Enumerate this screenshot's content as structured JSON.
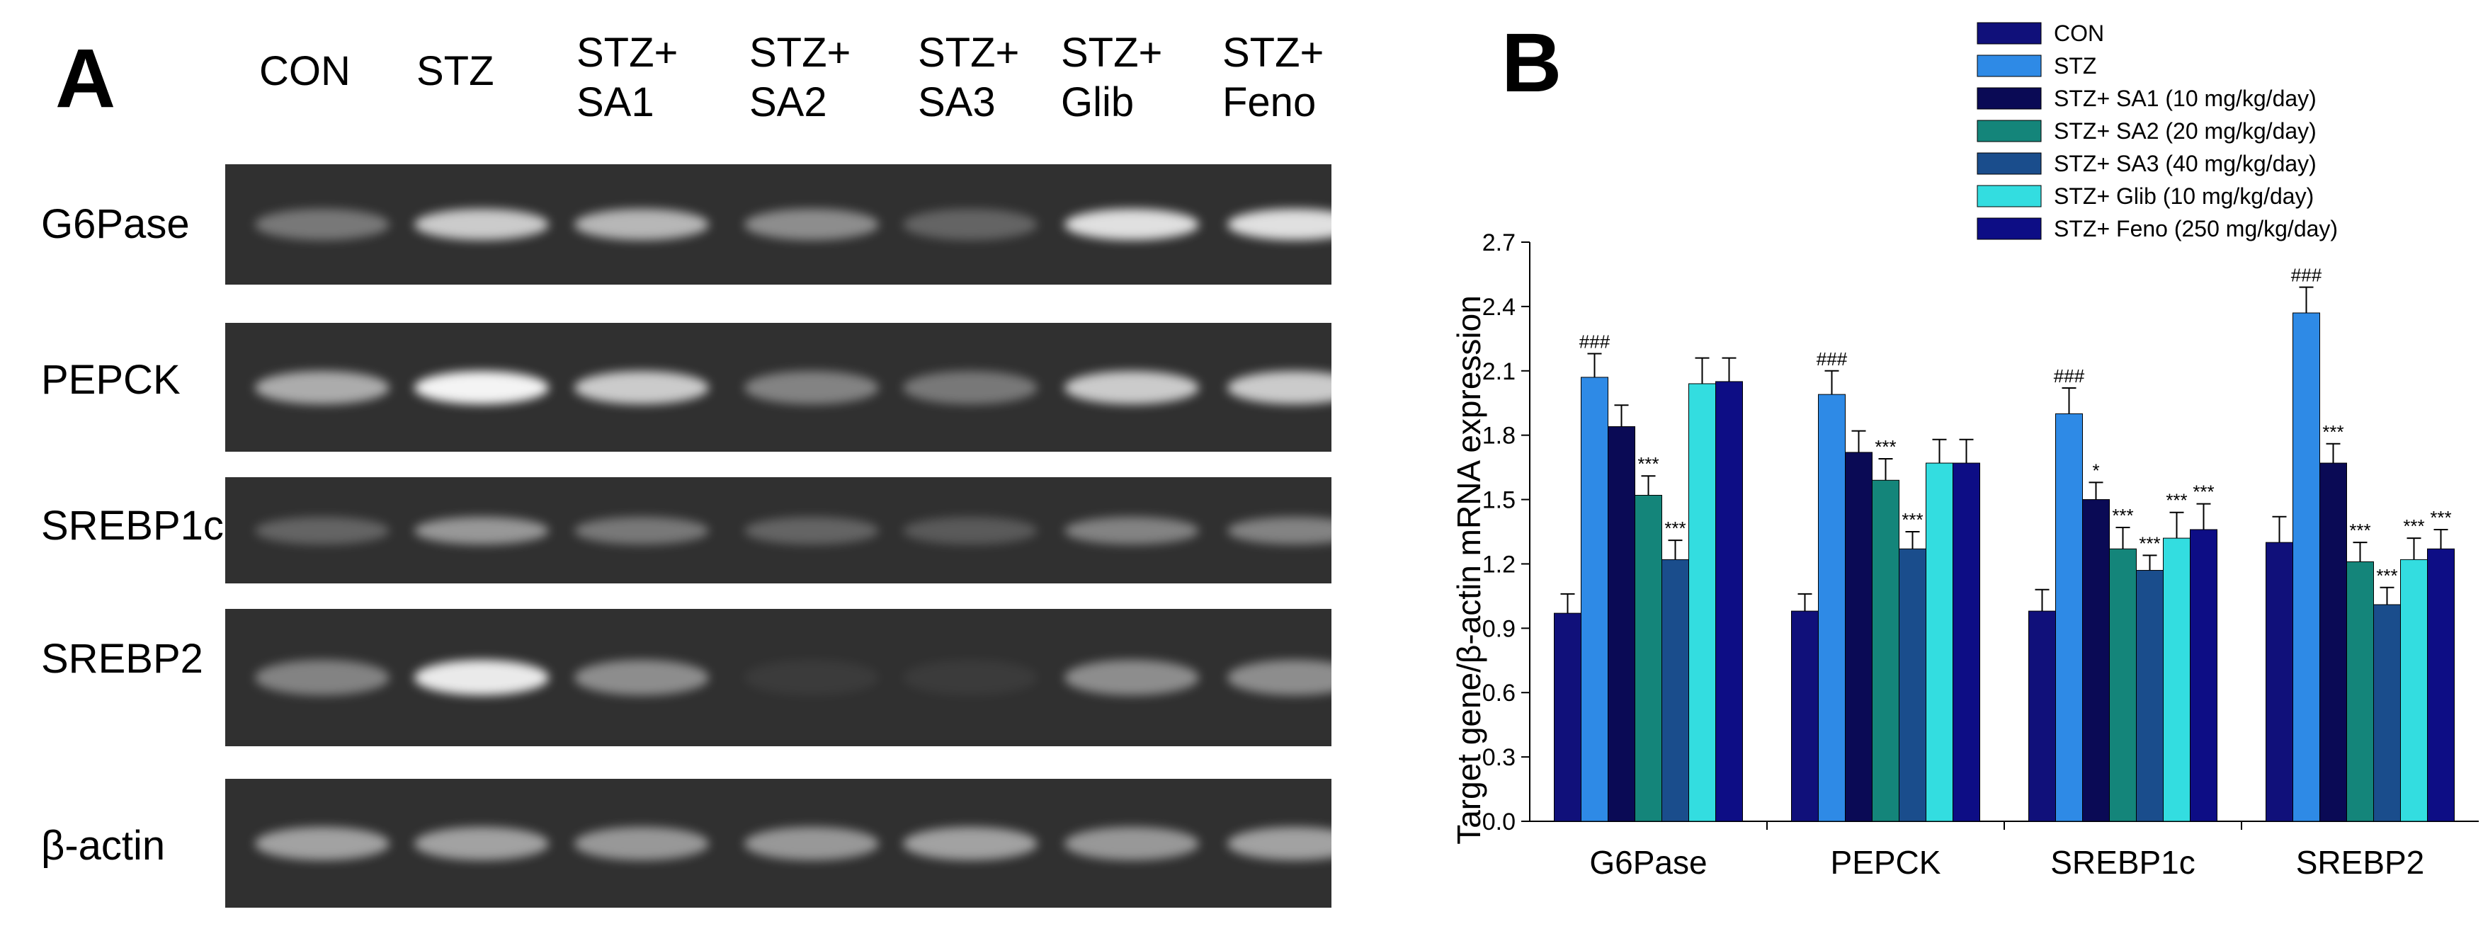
{
  "panel_a": {
    "letter": "A",
    "lanes": [
      "CON",
      "STZ",
      "STZ+\nSA1",
      "STZ+\nSA2",
      "STZ+\nSA3",
      "STZ+\nGlib",
      "STZ+\nFeno"
    ],
    "rows": [
      {
        "label": "G6Pase",
        "intensity": [
          0.35,
          0.75,
          0.65,
          0.45,
          0.25,
          0.85,
          0.85
        ]
      },
      {
        "label": "PEPCK",
        "intensity": [
          0.6,
          0.95,
          0.75,
          0.4,
          0.35,
          0.75,
          0.75
        ]
      },
      {
        "label": "SREBP1c",
        "intensity": [
          0.25,
          0.5,
          0.35,
          0.25,
          0.2,
          0.4,
          0.4
        ]
      },
      {
        "label": "SREBP2",
        "intensity": [
          0.4,
          0.9,
          0.45,
          0.05,
          0.05,
          0.45,
          0.45
        ]
      },
      {
        "label": "β-actin",
        "intensity": [
          0.55,
          0.55,
          0.5,
          0.5,
          0.55,
          0.5,
          0.55
        ]
      }
    ],
    "band_color": "#ffffff",
    "background_color": "#303030"
  },
  "panel_b": {
    "letter": "B"
  },
  "chart_data": {
    "type": "bar",
    "title": "",
    "xlabel": "",
    "ylabel": "Target gene/β-actin mRNA expression",
    "ylim": [
      0.0,
      2.7
    ],
    "yticks": [
      "0.0",
      "0.3",
      "0.6",
      "0.9",
      "1.2",
      "1.5",
      "1.8",
      "2.1",
      "2.4",
      "2.7"
    ],
    "categories": [
      "G6Pase",
      "PEPCK",
      "SREBP1c",
      "SREBP2"
    ],
    "legend_position": "top-right",
    "series": [
      {
        "name": "CON",
        "color": "#10107a",
        "values": [
          0.97,
          0.98,
          0.98,
          1.3
        ],
        "errors": [
          0.09,
          0.08,
          0.1,
          0.12
        ],
        "sig": [
          "",
          "",
          "",
          ""
        ]
      },
      {
        "name": "STZ",
        "color": "#2e8ae6",
        "values": [
          2.07,
          1.99,
          1.9,
          2.37
        ],
        "errors": [
          0.11,
          0.11,
          0.12,
          0.12
        ],
        "sig": [
          "###",
          "###",
          "###",
          "###"
        ]
      },
      {
        "name": "STZ+ SA1 (10 mg/kg/day)",
        "color": "#0a0a55",
        "values": [
          1.84,
          1.72,
          1.5,
          1.67
        ],
        "errors": [
          0.1,
          0.1,
          0.08,
          0.09
        ],
        "sig": [
          "",
          "",
          "*",
          "***"
        ]
      },
      {
        "name": "STZ+ SA2 (20 mg/kg/day)",
        "color": "#14857a",
        "values": [
          1.52,
          1.59,
          1.27,
          1.21
        ],
        "errors": [
          0.09,
          0.1,
          0.1,
          0.09
        ],
        "sig": [
          "***",
          "***",
          "***",
          "***"
        ]
      },
      {
        "name": "STZ+ SA3 (40 mg/kg/day)",
        "color": "#1a4d8c",
        "values": [
          1.22,
          1.27,
          1.17,
          1.01
        ],
        "errors": [
          0.09,
          0.08,
          0.07,
          0.08
        ],
        "sig": [
          "***",
          "***",
          "***",
          "***"
        ]
      },
      {
        "name": "STZ+ Glib (10 mg/kg/day)",
        "color": "#33dde0",
        "values": [
          2.04,
          1.67,
          1.32,
          1.22
        ],
        "errors": [
          0.12,
          0.11,
          0.12,
          0.1
        ],
        "sig": [
          "",
          "",
          "***",
          "***"
        ]
      },
      {
        "name": "STZ+ Feno (250 mg/kg/day)",
        "color": "#0d0d85",
        "values": [
          2.05,
          1.67,
          1.36,
          1.27
        ],
        "errors": [
          0.11,
          0.11,
          0.12,
          0.09
        ],
        "sig": [
          "",
          "",
          "***",
          "***"
        ]
      }
    ]
  }
}
